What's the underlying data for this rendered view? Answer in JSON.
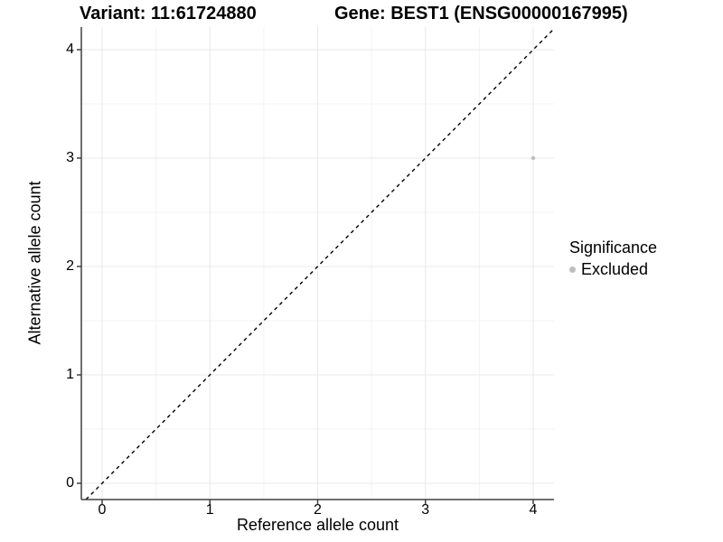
{
  "chart_data": {
    "type": "scatter",
    "title_left": "Variant: 11:61724880",
    "title_right": "Gene: BEST1 (ENSG00000167995)",
    "xlabel": "Reference allele count",
    "ylabel": "Alternative allele count",
    "xticks": [
      0,
      1,
      2,
      3,
      4
    ],
    "yticks": [
      0,
      1,
      2,
      3,
      4
    ],
    "minor_ticks": [
      0.5,
      1.5,
      2.5,
      3.5
    ],
    "xlim": [
      -0.19,
      4.19
    ],
    "ylim": [
      -0.15,
      4.21
    ],
    "grid": true,
    "points": [
      {
        "x": 4,
        "y": 3,
        "significance": "Excluded"
      }
    ],
    "identity_line": {
      "slope": 1,
      "intercept": 0,
      "style": "dashed"
    },
    "legend": {
      "title": "Significance",
      "position": "right",
      "entries": [
        {
          "label": "Excluded",
          "color": "#bebebe"
        }
      ]
    },
    "colors": {
      "point": "#bebebe",
      "grid_major": "#e8e8e8",
      "grid_minor": "#f3f3f3",
      "axis": "#404040",
      "identity_line": "#000000",
      "text": "#000000"
    }
  }
}
